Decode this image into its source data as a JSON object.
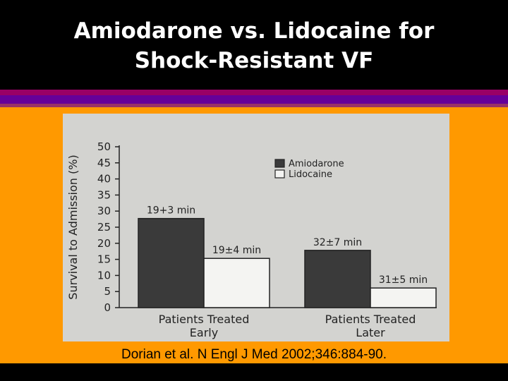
{
  "slide": {
    "title_line1": "Amiodarone vs. Lidocaine for",
    "title_line2": "Shock-Resistant VF",
    "citation": "Dorian et al.  N Engl J Med 2002;346:884-90.",
    "colors": {
      "background": "#ff9900",
      "title_bg": "#000000",
      "title_text": "#ffffff",
      "stripe_purple": "#990066",
      "stripe_violet": "#660099"
    }
  },
  "chart_data": {
    "type": "bar",
    "categories": [
      "Patients Treated\nEarly",
      "Patients Treated\nLater"
    ],
    "category_lines": [
      [
        "Patients Treated",
        "Early"
      ],
      [
        "Patients Treated",
        "Later"
      ]
    ],
    "series": [
      {
        "name": "Amiodarone",
        "values": [
          27.7,
          17.8
        ],
        "color": "#3a3a3a",
        "labels": [
          "19+3 min",
          "32±7 min"
        ]
      },
      {
        "name": "Lidocaine",
        "values": [
          15.3,
          6.1
        ],
        "color": "#f4f4f2",
        "labels": [
          "19±4 min",
          "31±5 min"
        ]
      }
    ],
    "ylabel": "Survival to Admission (%)",
    "ylim": [
      0,
      50
    ],
    "yticks": [
      0,
      5,
      10,
      15,
      20,
      25,
      30,
      35,
      40,
      45,
      50
    ],
    "legend_position": "top-right",
    "grid": false
  }
}
